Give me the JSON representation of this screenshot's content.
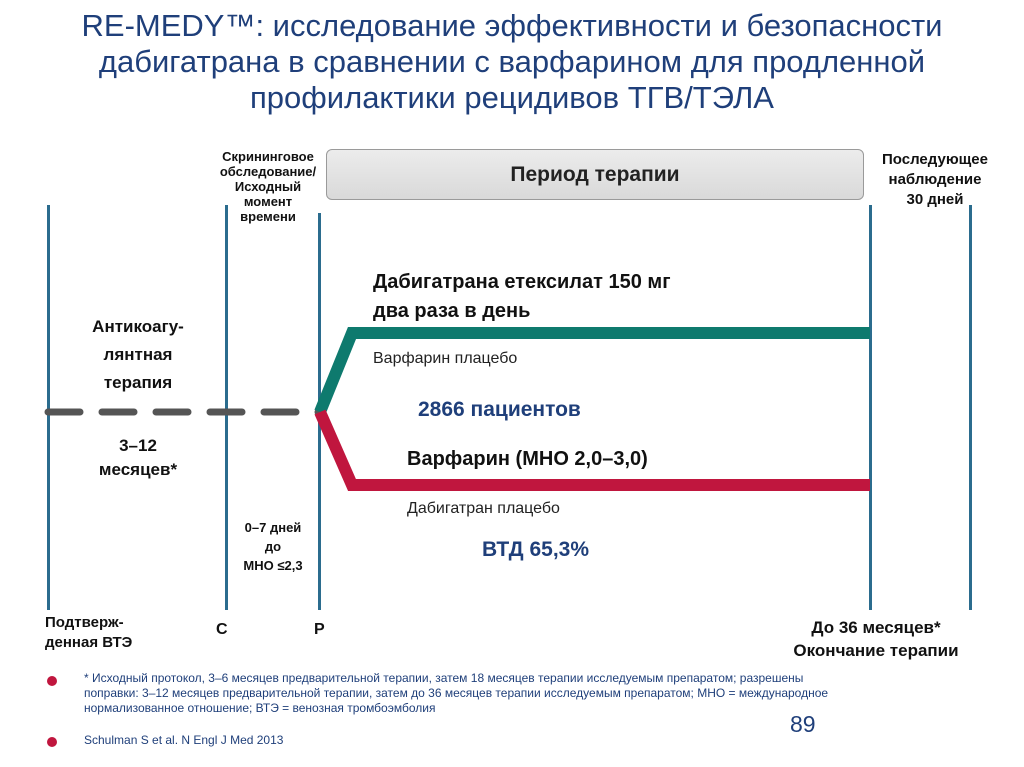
{
  "title": {
    "line1": "RE-MEDY™: исследование эффективности и безопасности",
    "line2": "дабигатрана в сравнении с варфарином для продленной",
    "line3": "профилактики рецидивов ТГВ/ТЭЛА"
  },
  "therapy_period": "Период терапии",
  "screening": {
    "line1": "Скрининговое",
    "line2": "обследование/",
    "line3": "Исходный",
    "line4": "момент",
    "line5": "времени"
  },
  "followup": {
    "line1": "Последующее",
    "line2": "наблюдение",
    "line3": "30 дней"
  },
  "anticoag": {
    "line1": "Антикоагу-",
    "line2": "лянтная",
    "line3": "терапия",
    "dur1": "3–12",
    "dur2": "месяцев*"
  },
  "window": {
    "line1": "0–7 дней",
    "line2": "до",
    "line3": "МНО ≤2,3"
  },
  "arms": {
    "dabi_line1": "Дабигатрана етексилат 150 мг",
    "dabi_line2": "два раза в день",
    "dabi_placebo": "Варфарин плацебо",
    "patients": "2866 пациентов",
    "warfarin": "Варфарин (МНО 2,0–3,0)",
    "warf_placebo": "Дабигатран плацебо",
    "vtd": "ВТД 65,3%"
  },
  "bottom": {
    "confirmed1": "Подтверж-",
    "confirmed2": "денная ВТЭ",
    "c": "С",
    "r": "Р",
    "end1": "До 36 месяцев*",
    "end2": "Окончание терапии"
  },
  "footnote": {
    "line1": "* Исходный протокол, 3–6 месяцев предварительной терапии, затем 18 месяцев терапии исследуемым препаратом; разрешены",
    "line2": "поправки: 3–12 месяцев предварительной терапии, затем до 36 месяцев терапии исследуемым препаратом; МНО = международное",
    "line3": "нормализованное отношение; ВТЭ = венозная тромбоэмболия",
    "reference": "Schulman S et al. N Engl J Med 2013",
    "page": "89"
  },
  "colors": {
    "title": "#1f3f7a",
    "dabigatran": "#0e7a6e",
    "warfarin": "#c0163e",
    "timeline": "#2b6c8e",
    "dash": "#555555",
    "bullet": "#c0163e"
  }
}
